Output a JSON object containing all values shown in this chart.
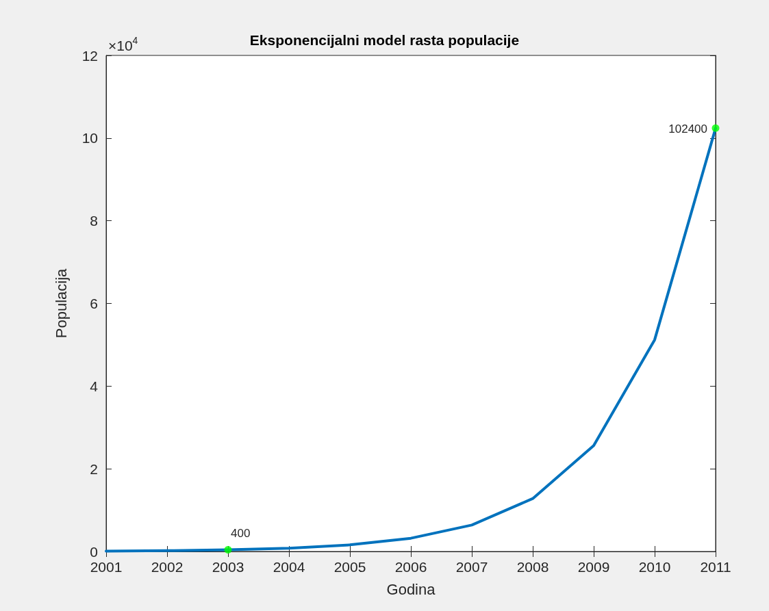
{
  "chart_data": {
    "type": "line",
    "title": "Eksponencijalni model rasta populacije",
    "xlabel": "Godina",
    "ylabel": "Populacija",
    "annotations": [
      "×10$^{4}$",
      {
        "text": "400",
        "x": 2003,
        "y": 0.04
      },
      {
        "text": "102400",
        "x": 2011,
        "y": 10.24
      }
    ],
    "x": [
      2001,
      2002,
      2003,
      2004,
      2005,
      2006,
      2007,
      2008,
      2009,
      2010,
      2011
    ],
    "series": [
      {
        "color": "#0072bd",
        "values": [
          0.01,
          0.02,
          0.04,
          0.08,
          0.16,
          0.32,
          0.64,
          1.28,
          2.56,
          5.12,
          10.24
        ]
      },
      {
        "type": "scatter",
        "color": "#00ff00",
        "x": [
          2003,
          2011
        ],
        "values": [
          0.04,
          10.24
        ],
        "marker": "circle"
      }
    ],
    "xlim": [
      2001,
      2011
    ],
    "xticks": [
      2001,
      2002,
      2003,
      2004,
      2005,
      2006,
      2007,
      2008,
      2009,
      2010,
      2011
    ],
    "ylim": [
      0,
      12
    ],
    "yticks": [
      0,
      2,
      4,
      6,
      8,
      10,
      12
    ],
    "marker": "none",
    "grid": false
  }
}
